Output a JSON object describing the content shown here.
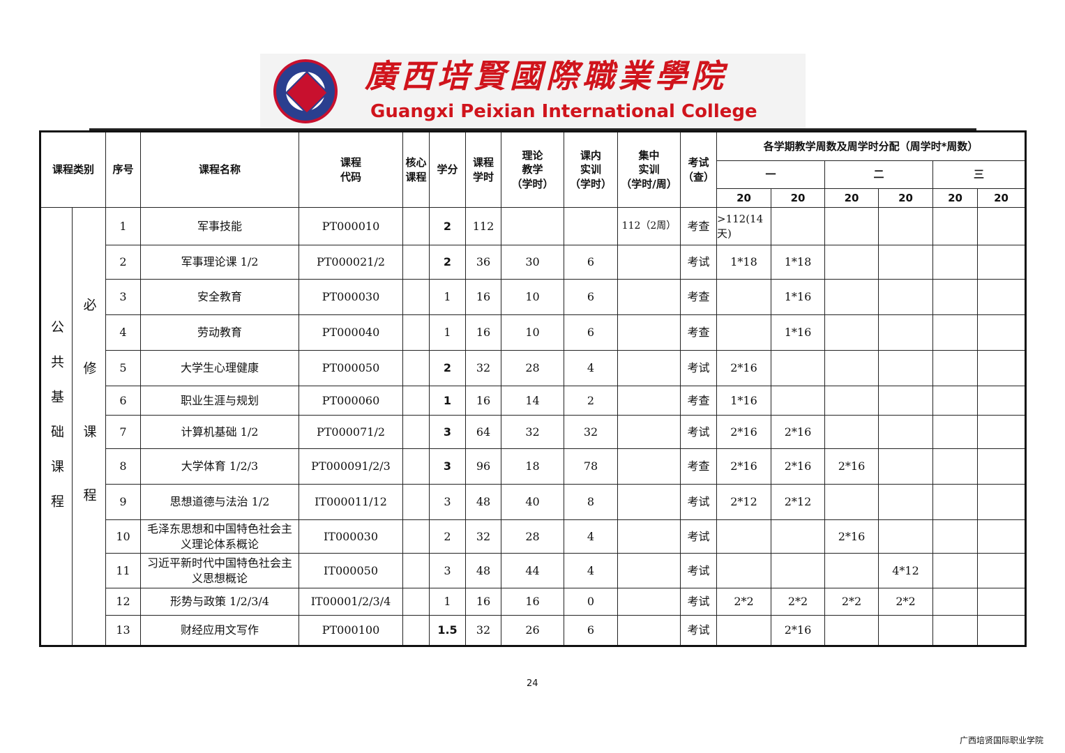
{
  "logo": {
    "cn": "廣西培賢國際職業學院",
    "en": "Guangxi Peixian International College",
    "seal_text": "广西培贤国际职业学院 GUANGXI PEIXIAN INTERNATIONAL COLLEGE"
  },
  "headers": {
    "category": "课程类别",
    "seq": "序号",
    "name": "课程名称",
    "code": "课程\n代码",
    "core": "核心\n课程",
    "credit": "学分",
    "hours": "课程\n学时",
    "theory": "理论\n教学\n（学时）",
    "practice": "课内\n实训\n（学时）",
    "intensive": "集中\n实训\n（学时/周）",
    "exam": "考试\n（查）",
    "semester_dist": "各学期教学周数及周学时分配（周学时*周数）",
    "years": [
      "一",
      "二",
      "三"
    ],
    "weeks": [
      "20",
      "20",
      "20",
      "20",
      "20",
      "20"
    ]
  },
  "category": {
    "main": "公共基础课程",
    "sub": "必修课程"
  },
  "rows": [
    {
      "seq": "1",
      "name": "军事技能",
      "code": "PT000010",
      "core": "",
      "credit": "2",
      "hours": "112",
      "theory": "",
      "practice": "",
      "intensive": "112（2周）",
      "exam": "考查",
      "s": [
        ">112(14天)",
        "",
        "",
        "",
        "",
        ""
      ]
    },
    {
      "seq": "2",
      "name": "军事理论课 1/2",
      "code": "PT000021/2",
      "core": "",
      "credit": "2",
      "hours": "36",
      "theory": "30",
      "practice": "6",
      "intensive": "",
      "exam": "考试",
      "s": [
        "1*18",
        "1*18",
        "",
        "",
        "",
        ""
      ]
    },
    {
      "seq": "3",
      "name": "安全教育",
      "code": "PT000030",
      "core": "",
      "credit": "1",
      "hours": "16",
      "theory": "10",
      "practice": "6",
      "intensive": "",
      "exam": "考查",
      "s": [
        "",
        "1*16",
        "",
        "",
        "",
        ""
      ]
    },
    {
      "seq": "4",
      "name": "劳动教育",
      "code": "PT000040",
      "core": "",
      "credit": "1",
      "hours": "16",
      "theory": "10",
      "practice": "6",
      "intensive": "",
      "exam": "考查",
      "s": [
        "",
        "1*16",
        "",
        "",
        "",
        ""
      ]
    },
    {
      "seq": "5",
      "name": "大学生心理健康",
      "code": "PT000050",
      "core": "",
      "credit": "2",
      "hours": "32",
      "theory": "28",
      "practice": "4",
      "intensive": "",
      "exam": "考试",
      "s": [
        "2*16",
        "",
        "",
        "",
        "",
        ""
      ]
    },
    {
      "seq": "6",
      "name": "职业生涯与规划",
      "code": "PT000060",
      "core": "",
      "credit": "1",
      "hours": "16",
      "theory": "14",
      "practice": "2",
      "intensive": "",
      "exam": "考查",
      "s": [
        "1*16",
        "",
        "",
        "",
        "",
        ""
      ]
    },
    {
      "seq": "7",
      "name": "计算机基础 1/2",
      "code": "PT000071/2",
      "core": "",
      "credit": "3",
      "hours": "64",
      "theory": "32",
      "practice": "32",
      "intensive": "",
      "exam": "考试",
      "s": [
        "2*16",
        "2*16",
        "",
        "",
        "",
        ""
      ]
    },
    {
      "seq": "8",
      "name": "大学体育 1/2/3",
      "code": "PT000091/2/3",
      "core": "",
      "credit": "3",
      "hours": "96",
      "theory": "18",
      "practice": "78",
      "intensive": "",
      "exam": "考查",
      "s": [
        "2*16",
        "2*16",
        "2*16",
        "",
        "",
        ""
      ]
    },
    {
      "seq": "9",
      "name": "思想道德与法治 1/2",
      "code": "IT000011/12",
      "core": "",
      "credit": "3",
      "hours": "48",
      "theory": "40",
      "practice": "8",
      "intensive": "",
      "exam": "考试",
      "s": [
        "2*12",
        "2*12",
        "",
        "",
        "",
        ""
      ]
    },
    {
      "seq": "10",
      "name": "毛泽东思想和中国特色社会主义理论体系概论",
      "code": "IT000030",
      "core": "",
      "credit": "2",
      "hours": "32",
      "theory": "28",
      "practice": "4",
      "intensive": "",
      "exam": "考试",
      "s": [
        "",
        "",
        "2*16",
        "",
        "",
        ""
      ]
    },
    {
      "seq": "11",
      "name": "习近平新时代中国特色社会主义思想概论",
      "code": "IT000050",
      "core": "",
      "credit": "3",
      "hours": "48",
      "theory": "44",
      "practice": "4",
      "intensive": "",
      "exam": "考试",
      "s": [
        "",
        "",
        "",
        "4*12",
        "",
        ""
      ]
    },
    {
      "seq": "12",
      "name": "形势与政策 1/2/3/4",
      "code": "IT00001/2/3/4",
      "core": "",
      "credit": "1",
      "hours": "16",
      "theory": "16",
      "practice": "0",
      "intensive": "",
      "exam": "考试",
      "s": [
        "2*2",
        "2*2",
        "2*2",
        "2*2",
        "",
        ""
      ]
    },
    {
      "seq": "13",
      "name": "财经应用文写作",
      "code": "PT000100",
      "core": "",
      "credit": "1.5",
      "hours": "32",
      "theory": "26",
      "practice": "6",
      "intensive": "",
      "exam": "考试",
      "s": [
        "",
        "2*16",
        "",
        "",
        "",
        ""
      ]
    }
  ],
  "page_number": "24",
  "footer": "广西培贤国际职业学院"
}
